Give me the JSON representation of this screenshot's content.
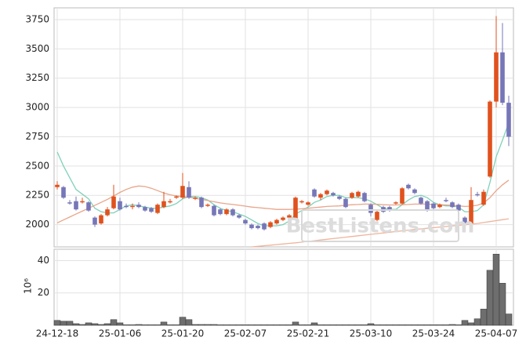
{
  "chart_data": {
    "type": "candlestick",
    "categories": [
      "24-12-18",
      null,
      null,
      null,
      null,
      null,
      null,
      null,
      null,
      null,
      "25-01-06",
      null,
      null,
      null,
      null,
      null,
      null,
      null,
      null,
      null,
      "25-01-20",
      null,
      null,
      null,
      null,
      null,
      null,
      null,
      null,
      null,
      "25-02-07",
      null,
      null,
      null,
      null,
      null,
      null,
      null,
      null,
      null,
      "25-02-21",
      null,
      null,
      null,
      null,
      null,
      null,
      null,
      null,
      null,
      "25-03-10",
      null,
      null,
      null,
      null,
      null,
      null,
      null,
      null,
      null,
      "25-03-24",
      null,
      null,
      null,
      null,
      null,
      null,
      null,
      null,
      null,
      "25-04-07",
      null,
      null
    ],
    "up_color": "#e0521e",
    "down_color": "#7676b8",
    "ohlc": [
      [
        2320,
        2370,
        2300,
        2340
      ],
      [
        2320,
        2330,
        2220,
        2230
      ],
      [
        2190,
        2210,
        2170,
        2180
      ],
      [
        2200,
        2240,
        2120,
        2130
      ],
      [
        2190,
        2230,
        2180,
        2200
      ],
      [
        2190,
        2200,
        2110,
        2120
      ],
      [
        2060,
        2070,
        1980,
        2000
      ],
      [
        2010,
        2090,
        2000,
        2080
      ],
      [
        2080,
        2150,
        2070,
        2130
      ],
      [
        2140,
        2340,
        2130,
        2240
      ],
      [
        2200,
        2230,
        2120,
        2130
      ],
      [
        2160,
        2180,
        2140,
        2150
      ],
      [
        2150,
        2180,
        2130,
        2160
      ],
      [
        2170,
        2190,
        2140,
        2150
      ],
      [
        2150,
        2160,
        2110,
        2120
      ],
      [
        2140,
        2150,
        2100,
        2110
      ],
      [
        2100,
        2180,
        2090,
        2170
      ],
      [
        2150,
        2280,
        2140,
        2200
      ],
      [
        2190,
        2220,
        2180,
        2200
      ],
      [
        2230,
        2250,
        2220,
        2240
      ],
      [
        2230,
        2440,
        2220,
        2330
      ],
      [
        2320,
        2370,
        2220,
        2230
      ],
      [
        2220,
        2240,
        2210,
        2230
      ],
      [
        2230,
        2240,
        2140,
        2150
      ],
      [
        2160,
        2180,
        2150,
        2170
      ],
      [
        2160,
        2170,
        2070,
        2080
      ],
      [
        2130,
        2140,
        2080,
        2090
      ],
      [
        2090,
        2140,
        2080,
        2130
      ],
      [
        2130,
        2140,
        2070,
        2080
      ],
      [
        2080,
        2090,
        2050,
        2060
      ],
      [
        2040,
        2050,
        2000,
        2010
      ],
      [
        2000,
        2010,
        1960,
        1970
      ],
      [
        1990,
        2000,
        1960,
        1970
      ],
      [
        2010,
        2020,
        1950,
        1960
      ],
      [
        1980,
        2030,
        1970,
        2020
      ],
      [
        2010,
        2050,
        2000,
        2040
      ],
      [
        2040,
        2070,
        2030,
        2060
      ],
      [
        2060,
        2090,
        2050,
        2080
      ],
      [
        2050,
        2240,
        2040,
        2230
      ],
      [
        2190,
        2210,
        2180,
        2200
      ],
      [
        2170,
        2200,
        2160,
        2190
      ],
      [
        2300,
        2310,
        2230,
        2240
      ],
      [
        2230,
        2270,
        2210,
        2260
      ],
      [
        2260,
        2300,
        2250,
        2290
      ],
      [
        2270,
        2280,
        2240,
        2250
      ],
      [
        2240,
        2250,
        2210,
        2220
      ],
      [
        2220,
        2230,
        2140,
        2150
      ],
      [
        2230,
        2280,
        2220,
        2270
      ],
      [
        2240,
        2290,
        2230,
        2280
      ],
      [
        2270,
        2280,
        2190,
        2200
      ],
      [
        2170,
        2180,
        2070,
        2100
      ],
      [
        2040,
        2120,
        2030,
        2110
      ],
      [
        2150,
        2160,
        2100,
        2110
      ],
      [
        2150,
        2160,
        2110,
        2120
      ],
      [
        2180,
        2200,
        2170,
        2190
      ],
      [
        2180,
        2320,
        2170,
        2310
      ],
      [
        2340,
        2350,
        2300,
        2310
      ],
      [
        2300,
        2310,
        2260,
        2270
      ],
      [
        2230,
        2240,
        2170,
        2180
      ],
      [
        2200,
        2210,
        2110,
        2120
      ],
      [
        2180,
        2190,
        2130,
        2140
      ],
      [
        2150,
        2180,
        2140,
        2170
      ],
      [
        2210,
        2230,
        2190,
        2200
      ],
      [
        2190,
        2200,
        2140,
        2150
      ],
      [
        2170,
        2180,
        2110,
        2120
      ],
      [
        2060,
        2070,
        2000,
        2010
      ],
      [
        2010,
        2320,
        2000,
        2210
      ],
      [
        2260,
        2280,
        2240,
        2250
      ],
      [
        2170,
        2300,
        2160,
        2280
      ],
      [
        2410,
        3060,
        2400,
        3050
      ],
      [
        3050,
        3780,
        3000,
        3470
      ],
      [
        3470,
        3720,
        3020,
        3040
      ],
      [
        3040,
        3100,
        2670,
        2750
      ]
    ],
    "lines": [
      {
        "color": "#7fd1b9",
        "values": [
          2620,
          2500,
          2400,
          2300,
          2260,
          2220,
          2140,
          2110,
          2100,
          2100,
          2130,
          2160,
          2170,
          2160,
          2150,
          2140,
          2140,
          2150,
          2160,
          2180,
          2220,
          2240,
          2240,
          2230,
          2210,
          2170,
          2140,
          2120,
          2110,
          2090,
          2070,
          2040,
          2010,
          1990,
          1990,
          1990,
          2000,
          2030,
          2090,
          2120,
          2150,
          2190,
          2210,
          2240,
          2250,
          2250,
          2230,
          2230,
          2230,
          2220,
          2200,
          2170,
          2140,
          2130,
          2130,
          2170,
          2210,
          2240,
          2250,
          2230,
          2190,
          2170,
          2160,
          2160,
          2150,
          2110,
          2110,
          2120,
          2170,
          2360,
          2580,
          2720,
          2870
        ]
      },
      {
        "color": "#e9a58a",
        "values": [
          2015,
          2040,
          2065,
          2090,
          2115,
          2140,
          2165,
          2190,
          2215,
          2245,
          2275,
          2300,
          2320,
          2330,
          2325,
          2310,
          2290,
          2270,
          2255,
          2245,
          2240,
          2235,
          2225,
          2215,
          2205,
          2195,
          2185,
          2178,
          2172,
          2165,
          2158,
          2150,
          2145,
          2140,
          2135,
          2130,
          2130,
          2130,
          2132,
          2135,
          2140,
          2145,
          2150,
          2155,
          2158,
          2160,
          2165,
          2170,
          2172,
          2175,
          2175,
          2173,
          2170,
          2168,
          2168,
          2170,
          2172,
          2175,
          2175,
          2175,
          2172,
          2170,
          2168,
          2165,
          2160,
          2155,
          2158,
          2165,
          2185,
          2230,
          2290,
          2340,
          2380
        ]
      },
      {
        "color": "#eeb49c",
        "values": [
          null,
          null,
          null,
          null,
          null,
          null,
          null,
          null,
          null,
          null,
          null,
          null,
          null,
          null,
          null,
          null,
          null,
          null,
          null,
          null,
          null,
          null,
          null,
          null,
          null,
          null,
          null,
          null,
          null,
          null,
          null,
          1810,
          1815,
          1820,
          1825,
          1830,
          1835,
          1840,
          1845,
          1851,
          1857,
          1863,
          1869,
          1875,
          1881,
          1887,
          1893,
          1899,
          1905,
          1911,
          1917,
          1923,
          1929,
          1935,
          1941,
          1947,
          1953,
          1959,
          1964,
          1969,
          1974,
          1979,
          1984,
          1989,
          1994,
          1999,
          2004,
          2010,
          2018,
          2026,
          2034,
          2042,
          2050
        ]
      }
    ],
    "ylim": [
      1810,
      3850
    ],
    "yticks": [
      2000,
      2250,
      2500,
      2750,
      3000,
      3250,
      3500,
      3750
    ],
    "volume": [
      3,
      2.5,
      2.5,
      1,
      0.5,
      1.5,
      1,
      0.5,
      1,
      3.5,
      1.5,
      0.3,
      0.3,
      0.5,
      0.3,
      0.3,
      0.3,
      2,
      0.3,
      0.3,
      5,
      3.5,
      0.5,
      0.5,
      0.5,
      0.5,
      0.3,
      0.3,
      0.3,
      0.3,
      0.3,
      0.3,
      0.3,
      0.3,
      0.3,
      0.3,
      0.3,
      0.3,
      2,
      0.3,
      0.3,
      1.5,
      0.3,
      0.3,
      0.3,
      0.3,
      0.3,
      0.3,
      0.3,
      0.3,
      1,
      0.3,
      0.3,
      0.3,
      0.3,
      0.3,
      0.3,
      0.3,
      0.3,
      0.3,
      0.3,
      0.3,
      0.3,
      0.5,
      0.3,
      3,
      1.5,
      4,
      10,
      34,
      44,
      26,
      7
    ],
    "volume_color": "#6e6e6e",
    "volume_ylim": [
      0,
      47
    ],
    "volume_yticks": [
      20,
      40
    ],
    "volume_ylabel": "10⁶",
    "grid": true,
    "watermark": "BestListens.com"
  }
}
